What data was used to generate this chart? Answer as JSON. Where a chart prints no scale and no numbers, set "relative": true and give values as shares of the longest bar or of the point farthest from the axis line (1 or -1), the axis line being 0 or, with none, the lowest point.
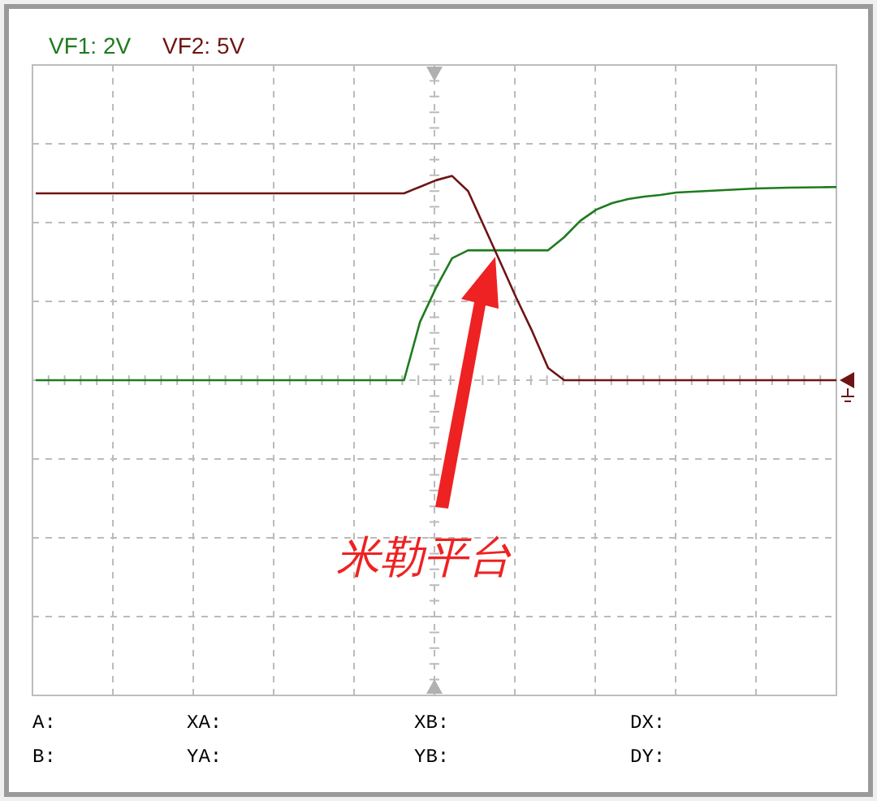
{
  "chart_data": {
    "type": "line",
    "relative": true,
    "grid": true,
    "legend": "top left",
    "categories": [
      null,
      null,
      null,
      null,
      null,
      null,
      null,
      null,
      null,
      null,
      null,
      null,
      null,
      null,
      null,
      null,
      null,
      null,
      null,
      null,
      null,
      null,
      null,
      null,
      null,
      null,
      null,
      null,
      null,
      null,
      null,
      null,
      null,
      null,
      null,
      null,
      null,
      null,
      null,
      null,
      null,
      null,
      null,
      null,
      null,
      null,
      null,
      null,
      null,
      null,
      null
    ],
    "series": [
      {
        "name": "VF1: 2V",
        "color": "#1e7b1e",
        "values": [
          0,
          0,
          0,
          0,
          0,
          0,
          0,
          0,
          0,
          0,
          0,
          0,
          0,
          0,
          0,
          0,
          0,
          0,
          0,
          0,
          0,
          0,
          0,
          0,
          0.286,
          0.453,
          0.597,
          0.636,
          0.636,
          0.636,
          0.636,
          0.636,
          0.636,
          0.7,
          0.78,
          0.835,
          0.867,
          0.887,
          0.899,
          0.907,
          0.919,
          0.923,
          0.927,
          0.931,
          0.935,
          0.939,
          0.941,
          0.943,
          0.944,
          0.945,
          0.946
        ]
      },
      {
        "name": "VF2: 5V",
        "color": "#6e1414",
        "values": [
          0.915,
          0.915,
          0.915,
          0.915,
          0.915,
          0.915,
          0.915,
          0.915,
          0.915,
          0.915,
          0.915,
          0.915,
          0.915,
          0.915,
          0.915,
          0.915,
          0.915,
          0.915,
          0.915,
          0.915,
          0.915,
          0.915,
          0.915,
          0.915,
          0.947,
          0.979,
          1,
          0.926,
          0.753,
          0.58,
          0.405,
          0.24,
          0.06,
          0,
          0,
          0,
          0,
          0,
          0,
          0,
          0,
          0,
          0,
          0,
          0,
          0,
          0,
          0,
          0,
          0,
          0
        ]
      }
    ],
    "annotations": [
      "米勒平台",
      "A:",
      "XA:",
      "XB:",
      "DX:",
      "B:",
      "YA:",
      "YB:",
      "DY:"
    ]
  }
}
